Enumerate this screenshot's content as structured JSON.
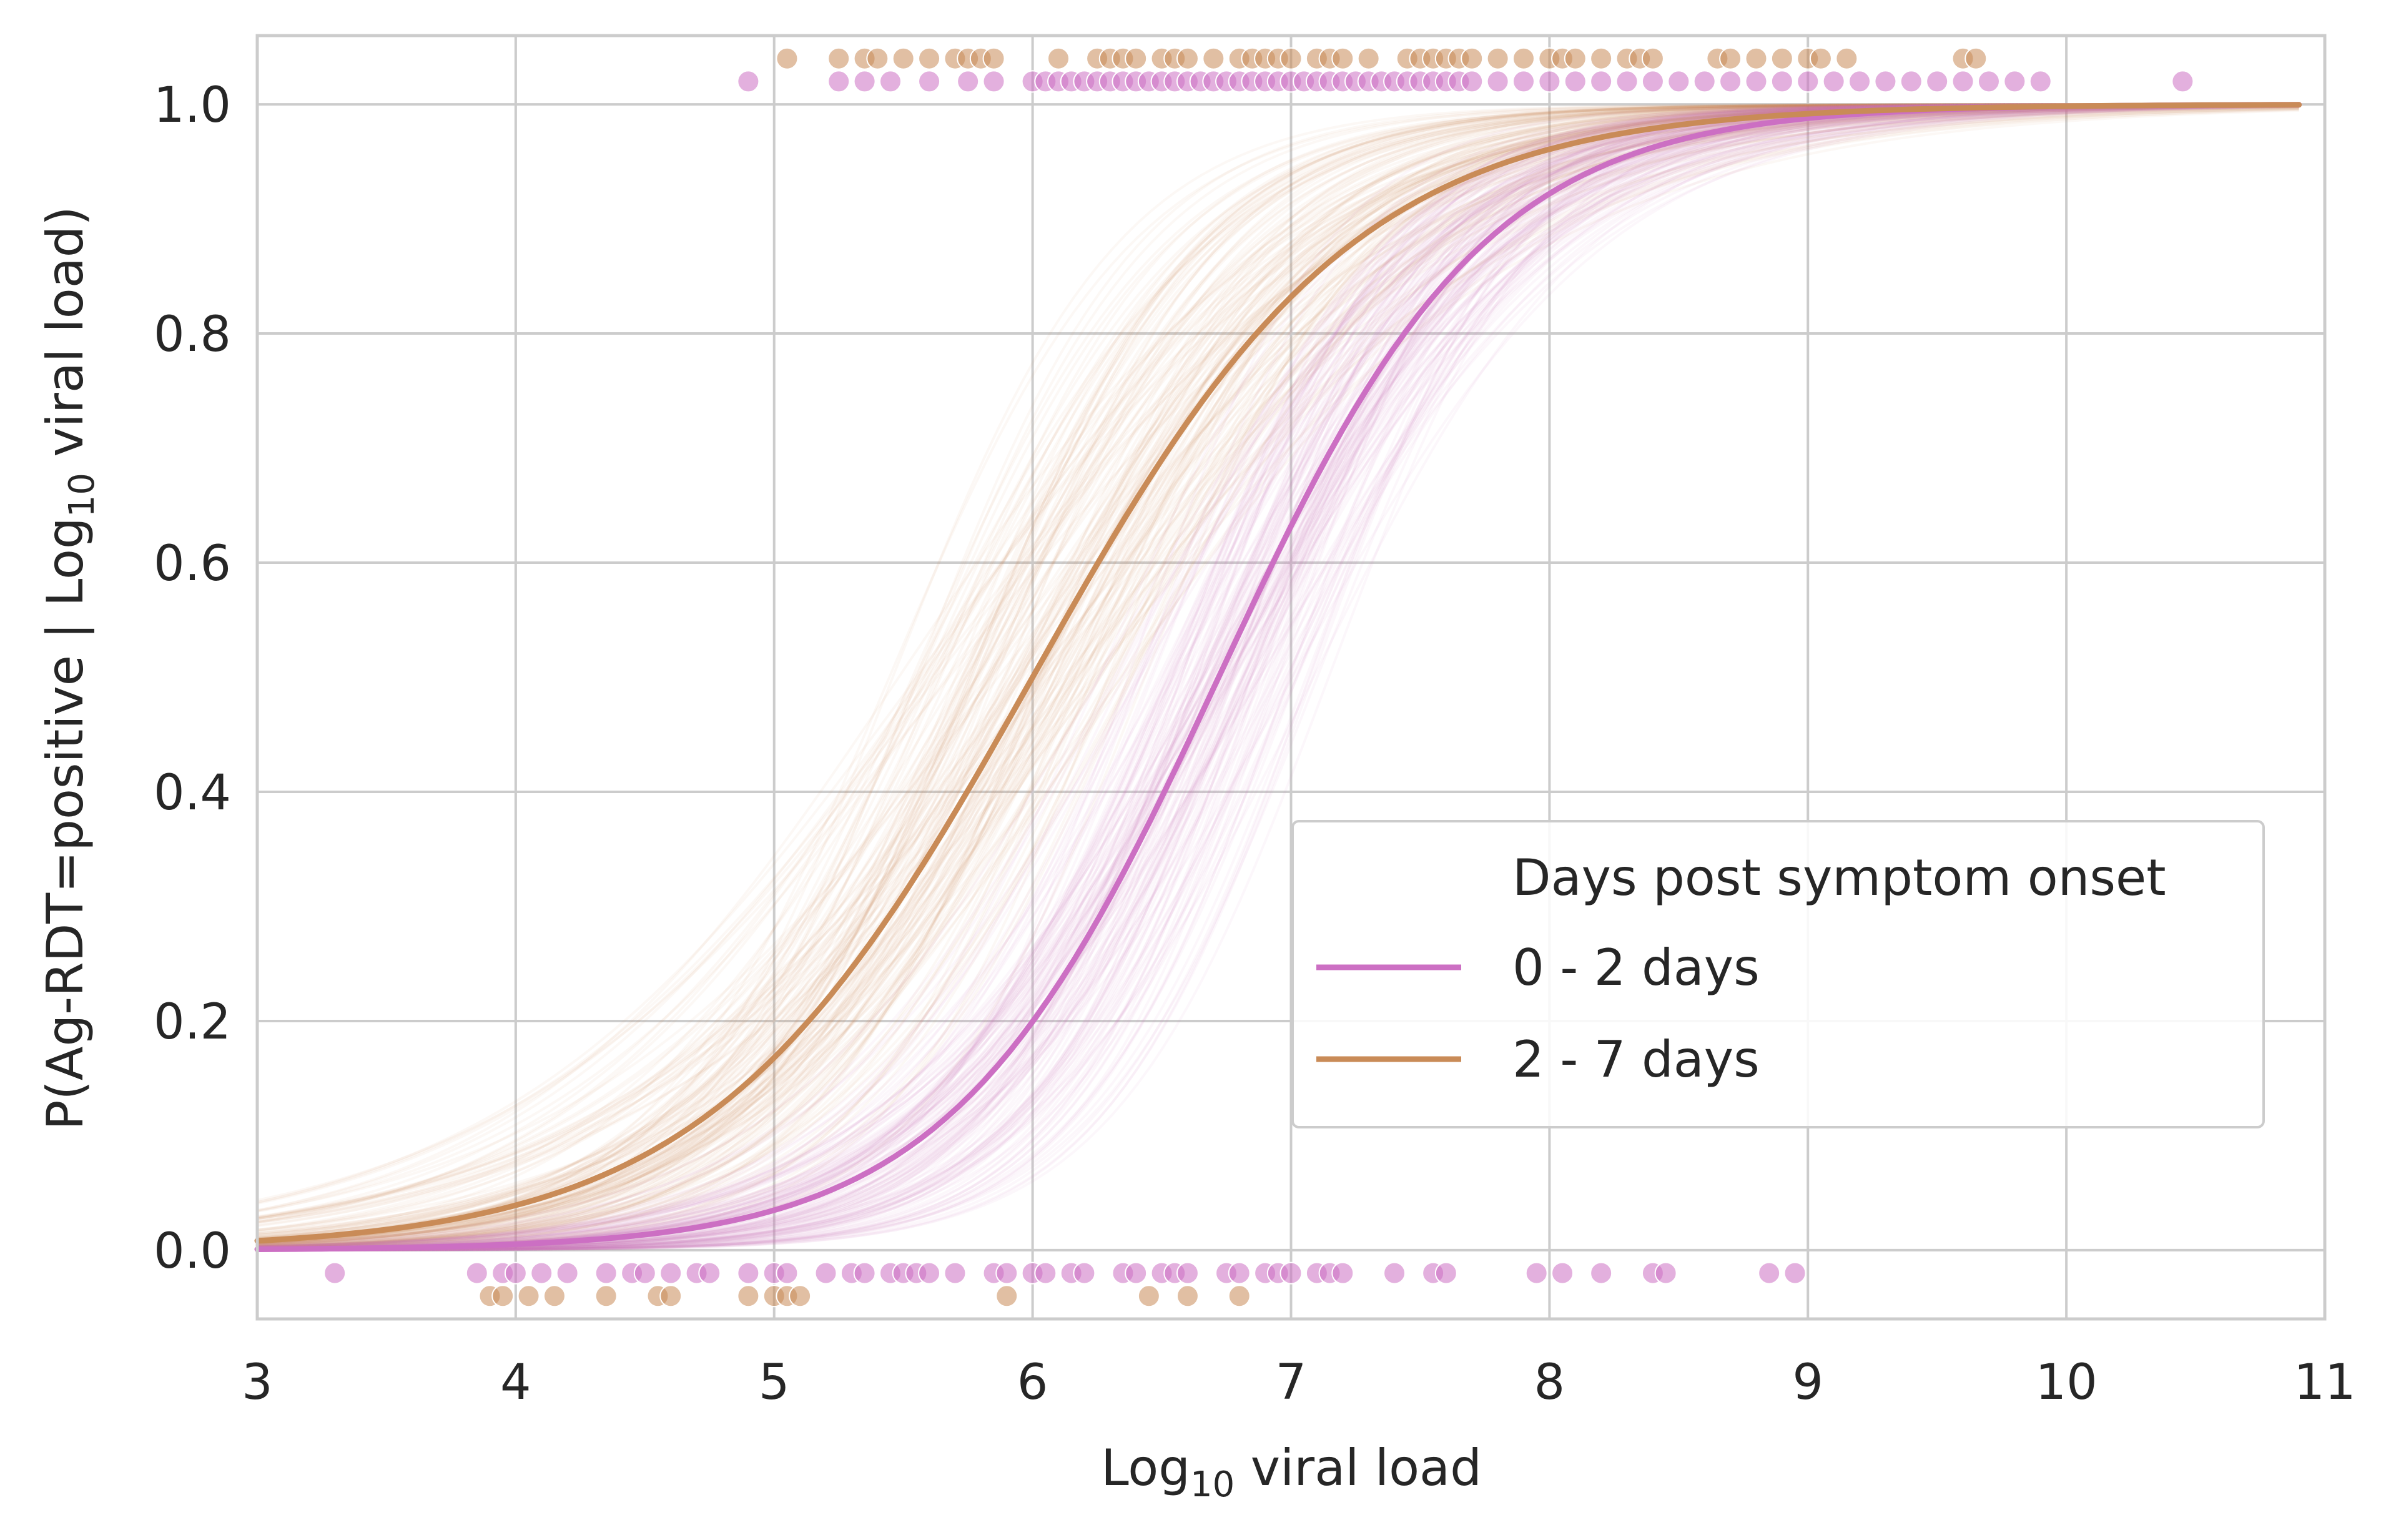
{
  "chart_data": {
    "type": "line",
    "title": "",
    "xlabel": {
      "prefix": "Log",
      "sub": "10",
      "suffix": " viral load"
    },
    "ylabel": {
      "prefix": "P(Ag-RDT=positive | Log",
      "sub": "10",
      "suffix": " viral load)"
    },
    "xlim": [
      3,
      11
    ],
    "ylim": [
      -0.06,
      1.06
    ],
    "xticks": [
      3,
      4,
      5,
      6,
      7,
      8,
      9,
      10,
      11
    ],
    "xtick_labels": [
      "3",
      "4",
      "5",
      "6",
      "7",
      "8",
      "9",
      "10",
      "11"
    ],
    "yticks": [
      0.0,
      0.2,
      0.4,
      0.6,
      0.8,
      1.0
    ],
    "ytick_labels": [
      "0.0",
      "0.2",
      "0.4",
      "0.6",
      "0.8",
      "1.0"
    ],
    "grid": true,
    "legend": {
      "title": "Days post symptom onset",
      "placement": "center-right",
      "entries": [
        "0 - 2 days",
        "2 - 7 days"
      ]
    },
    "series": [
      {
        "name": "0 - 2 days",
        "color": "#cc6fc3",
        "curve": {
          "midpoint": 6.72,
          "slope": 1.93,
          "x_range": [
            3.0,
            10.9
          ]
        },
        "posterior_band": {
          "midpoint_range": [
            6.25,
            7.2
          ],
          "slope_range": [
            1.5,
            2.6
          ],
          "samples": 150
        },
        "positive_points_y": 1.02,
        "positive_points_x": [
          4.9,
          5.25,
          5.35,
          5.45,
          5.6,
          5.75,
          5.85,
          6.0,
          6.05,
          6.1,
          6.15,
          6.2,
          6.25,
          6.3,
          6.35,
          6.4,
          6.45,
          6.5,
          6.55,
          6.6,
          6.65,
          6.7,
          6.75,
          6.8,
          6.85,
          6.9,
          6.95,
          7.0,
          7.05,
          7.1,
          7.15,
          7.2,
          7.25,
          7.3,
          7.35,
          7.4,
          7.45,
          7.5,
          7.55,
          7.6,
          7.65,
          7.7,
          7.8,
          7.9,
          8.0,
          8.1,
          8.2,
          8.3,
          8.4,
          8.5,
          8.6,
          8.7,
          8.8,
          8.9,
          9.0,
          9.1,
          9.2,
          9.3,
          9.4,
          9.5,
          9.6,
          9.7,
          9.8,
          9.9,
          10.45
        ],
        "negative_points_y": -0.02,
        "negative_points_x": [
          3.3,
          3.85,
          3.95,
          4.0,
          4.1,
          4.2,
          4.35,
          4.45,
          4.5,
          4.6,
          4.7,
          4.75,
          4.9,
          5.0,
          5.05,
          5.2,
          5.3,
          5.35,
          5.45,
          5.5,
          5.55,
          5.6,
          5.7,
          5.85,
          5.9,
          6.0,
          6.05,
          6.15,
          6.2,
          6.35,
          6.4,
          6.5,
          6.55,
          6.6,
          6.75,
          6.8,
          6.9,
          6.95,
          7.0,
          7.1,
          7.15,
          7.2,
          7.4,
          7.55,
          7.6,
          7.95,
          8.05,
          8.2,
          8.4,
          8.45,
          8.85,
          8.95
        ]
      },
      {
        "name": "2 - 7 days",
        "color": "#c98b57",
        "curve": {
          "midpoint": 6.0,
          "slope": 1.6,
          "x_range": [
            3.0,
            10.9
          ]
        },
        "posterior_band": {
          "midpoint_range": [
            5.4,
            6.5
          ],
          "slope_range": [
            1.1,
            2.3
          ],
          "samples": 150
        },
        "positive_points_y": 1.04,
        "positive_points_x": [
          5.05,
          5.25,
          5.35,
          5.4,
          5.5,
          5.6,
          5.7,
          5.75,
          5.8,
          5.85,
          6.1,
          6.25,
          6.3,
          6.35,
          6.4,
          6.5,
          6.55,
          6.6,
          6.7,
          6.8,
          6.85,
          6.9,
          6.95,
          7.0,
          7.1,
          7.15,
          7.2,
          7.3,
          7.45,
          7.5,
          7.55,
          7.6,
          7.65,
          7.7,
          7.8,
          7.9,
          8.0,
          8.05,
          8.1,
          8.2,
          8.3,
          8.35,
          8.4,
          8.65,
          8.7,
          8.8,
          8.9,
          9.0,
          9.05,
          9.15,
          9.6,
          9.65
        ],
        "negative_points_y": -0.04,
        "negative_points_x": [
          3.9,
          3.95,
          4.05,
          4.15,
          4.35,
          4.55,
          4.6,
          4.9,
          5.0,
          5.05,
          5.1,
          5.9,
          6.45,
          6.6,
          6.8
        ]
      }
    ]
  }
}
